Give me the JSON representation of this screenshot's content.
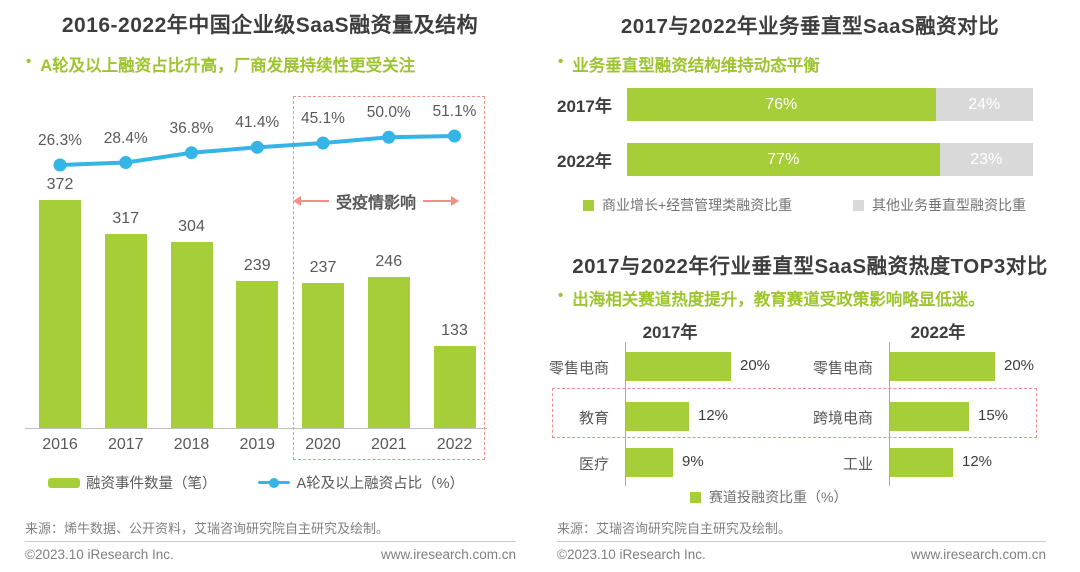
{
  "colors": {
    "green": "#a6ce39",
    "green_text": "#9ec42f",
    "blue": "#35b5e5",
    "gray_segment": "#d9d9d9",
    "title_dark": "#3d3d3d",
    "label_mid": "#595959",
    "footer_gray": "#808080",
    "accent_pink": "#f0908a"
  },
  "left_chart": {
    "title": "2016-2022年中国企业级SaaS融资量及结构",
    "subtitle": "A轮及以上融资占比升高，厂商发展持续性更受关注",
    "annotation": "受疫情影响",
    "legend_bar": "融资事件数量（笔）",
    "legend_line": "A轮及以上融资占比（%）"
  },
  "right_top_chart": {
    "title": "2017与2022年业务垂直型SaaS融资对比",
    "subtitle": "业务垂直型融资结构维持动态平衡",
    "legend_green": "商业增长+经营管理类融资比重",
    "legend_gray": "其他业务垂直型融资比重"
  },
  "right_bottom_chart": {
    "title": "2017与2022年行业垂直型SaaS融资热度TOP3对比",
    "subtitle": "出海相关赛道热度提升，教育赛道受政策影响略显低迷。",
    "legend": "赛道投融资比重（%）"
  },
  "chart_data": [
    {
      "id": "cn-saas-funding-2016-2022",
      "type": "bar",
      "subtype": "combo-bar-line",
      "title": "2016-2022年中国企业级SaaS融资量及结构",
      "categories": [
        "2016",
        "2017",
        "2018",
        "2019",
        "2020",
        "2021",
        "2022"
      ],
      "series": [
        {
          "name": "融资事件数量（笔）",
          "type": "bar",
          "values": [
            372,
            317,
            304,
            239,
            237,
            246,
            133
          ]
        },
        {
          "name": "A轮及以上融资占比（%）",
          "type": "line",
          "values": [
            26.3,
            28.4,
            36.8,
            41.4,
            45.1,
            50.0,
            51.1
          ],
          "value_labels": [
            "26.3%",
            "28.4%",
            "36.8%",
            "41.4%",
            "45.1%",
            "50.0%",
            "51.1%"
          ]
        }
      ],
      "annotation": {
        "text": "受疫情影响",
        "covers": [
          "2020",
          "2021",
          "2022"
        ]
      },
      "legend_position": "bottom",
      "grid": false
    },
    {
      "id": "business-vertical-saas-2017-vs-2022",
      "type": "bar",
      "subtype": "stacked-horizontal",
      "title": "2017与2022年业务垂直型SaaS融资对比",
      "categories": [
        "2017年",
        "2022年"
      ],
      "series": [
        {
          "name": "商业增长+经营管理类融资比重",
          "values": [
            76,
            77
          ],
          "labels": [
            "76%",
            "77%"
          ]
        },
        {
          "name": "其他业务垂直型融资比重",
          "values": [
            24,
            23
          ],
          "labels": [
            "24%",
            "23%"
          ]
        }
      ],
      "xlim": [
        0,
        100
      ],
      "legend_position": "bottom",
      "grid": false
    },
    {
      "id": "industry-vertical-saas-top3-2017-vs-2022",
      "type": "bar",
      "subtype": "horizontal-grouped",
      "title": "2017与2022年行业垂直型SaaS融资热度TOP3对比",
      "ylabel": "赛道投融资比重 (%)",
      "groups": [
        {
          "year": "2017年",
          "items": [
            {
              "label": "零售电商",
              "value": 20,
              "value_label": "20%"
            },
            {
              "label": "教育",
              "value": 12,
              "value_label": "12%"
            },
            {
              "label": "医疗",
              "value": 9,
              "value_label": "9%"
            }
          ]
        },
        {
          "year": "2022年",
          "items": [
            {
              "label": "零售电商",
              "value": 20,
              "value_label": "20%"
            },
            {
              "label": "跨境电商",
              "value": 15,
              "value_label": "15%"
            },
            {
              "label": "工业",
              "value": 12,
              "value_label": "12%"
            }
          ]
        }
      ],
      "highlighted_row_index": 1,
      "legend": "赛道投融资比重（%）",
      "grid": false
    }
  ],
  "footer_left": {
    "source": "来源：烯牛数据、公开资料，艾瑞咨询研究院自主研究及绘制。",
    "copyright": "©2023.10 iResearch Inc.",
    "website": "www.iresearch.com.cn"
  },
  "footer_right": {
    "source": "来源：艾瑞咨询研究院自主研究及绘制。",
    "copyright": "©2023.10 iResearch Inc.",
    "website": "www.iresearch.com.cn"
  }
}
